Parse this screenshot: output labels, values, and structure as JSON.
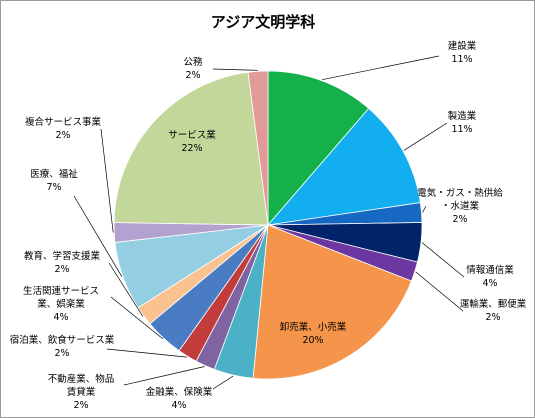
{
  "chart_data": {
    "type": "pie",
    "title": "アジア文明学科",
    "start_angle_deg": 0,
    "direction": "clockwise",
    "slices": [
      {
        "label": "建設業",
        "value": 11,
        "pct": "11%",
        "color": "#14b14b"
      },
      {
        "label": "製造業",
        "value": 11,
        "pct": "11%",
        "color": "#13aef0"
      },
      {
        "label": "電気・ガス・熱供給・水道業",
        "value": 2,
        "pct": "2%",
        "color": "#1668c2"
      },
      {
        "label": "情報通信業",
        "value": 4,
        "pct": "4%",
        "color": "#01236a"
      },
      {
        "label": "運輸業、郵便業",
        "value": 2,
        "pct": "2%",
        "color": "#6c37a0"
      },
      {
        "label": "卸売業、小売業",
        "value": 20,
        "pct": "20%",
        "color": "#f4954b"
      },
      {
        "label": "金融業、保険業",
        "value": 4,
        "pct": "4%",
        "color": "#4ab1c6"
      },
      {
        "label": "不動産業、物品賃貸業",
        "value": 2,
        "pct": "2%",
        "color": "#8064a2"
      },
      {
        "label": "宿泊業、飲食サービス業",
        "value": 2,
        "pct": "2%",
        "color": "#c23c3c"
      },
      {
        "label": "生活関連サービス業、娯楽業",
        "value": 4,
        "pct": "4%",
        "color": "#4a7cc4"
      },
      {
        "label": "教育、学習支援業",
        "value": 2,
        "pct": "2%",
        "color": "#fbc291"
      },
      {
        "label": "医療、福祉",
        "value": 7,
        "pct": "7%",
        "color": "#93cee2"
      },
      {
        "label": "複合サービス事業",
        "value": 2,
        "pct": "2%",
        "color": "#b3a2cf"
      },
      {
        "label": "サービス業",
        "value": 22,
        "pct": "22%",
        "color": "#c4d79b"
      },
      {
        "label": "公務",
        "value": 2,
        "pct": "2%",
        "color": "#e09a98"
      }
    ],
    "legend": "none",
    "data_labels": "outside-with-leaders"
  }
}
